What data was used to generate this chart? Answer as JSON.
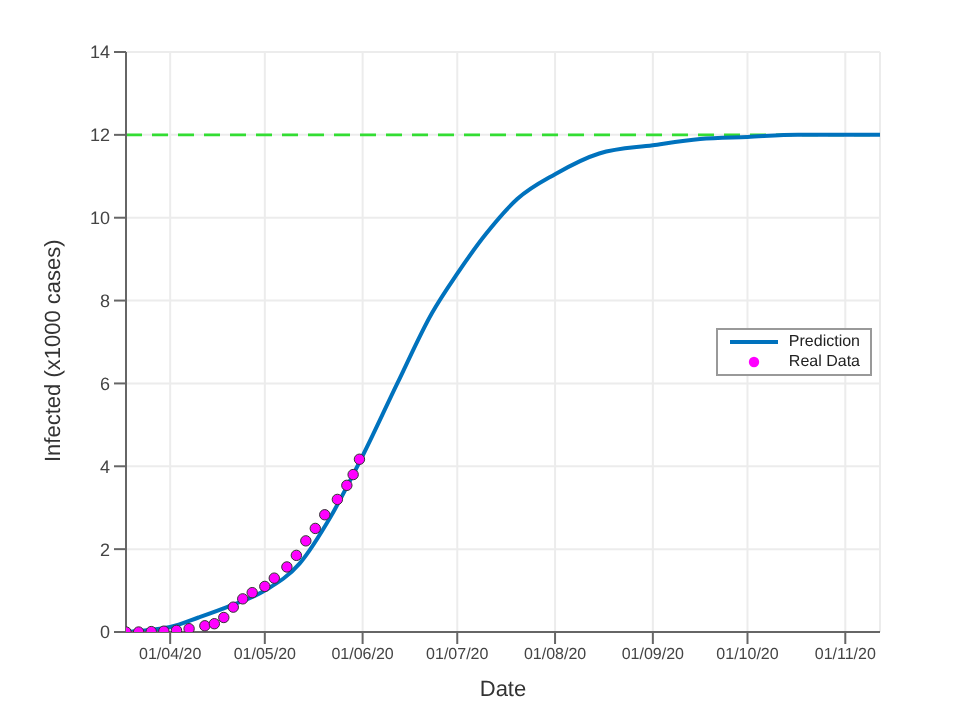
{
  "chart_data": {
    "type": "line",
    "xlabel": "Date",
    "ylabel": "Infected (x1000 cases)",
    "xlim": [
      "2020-03-18",
      "2020-11-12"
    ],
    "xticks": [
      {
        "value": "2020-04-01",
        "label": "01/04/20"
      },
      {
        "value": "2020-05-01",
        "label": "01/05/20"
      },
      {
        "value": "2020-06-01",
        "label": "01/06/20"
      },
      {
        "value": "2020-07-01",
        "label": "01/07/20"
      },
      {
        "value": "2020-08-01",
        "label": "01/08/20"
      },
      {
        "value": "2020-09-01",
        "label": "01/09/20"
      },
      {
        "value": "2020-10-01",
        "label": "01/10/20"
      },
      {
        "value": "2020-11-01",
        "label": "01/11/20"
      }
    ],
    "ylim": [
      0,
      14
    ],
    "yticks": [
      0,
      2,
      4,
      6,
      8,
      10,
      12,
      14
    ],
    "grid": true,
    "legend": "right",
    "series": [
      {
        "name": "Prediction",
        "color": "#0072bd",
        "marker": "none",
        "line_style": "solid",
        "x": [
          "2020-03-18",
          "2020-04-01",
          "2020-04-10",
          "2020-04-20",
          "2020-05-01",
          "2020-05-12",
          "2020-05-22",
          "2020-06-01",
          "2020-06-12",
          "2020-06-23",
          "2020-07-01",
          "2020-07-10",
          "2020-07-20",
          "2020-08-01",
          "2020-08-15",
          "2020-09-01",
          "2020-09-16",
          "2020-10-01",
          "2020-10-17",
          "2020-11-12"
        ],
        "values": [
          0,
          0.12,
          0.35,
          0.63,
          1.0,
          1.65,
          2.8,
          4.25,
          6.0,
          7.7,
          8.65,
          9.6,
          10.45,
          11.05,
          11.55,
          11.75,
          11.9,
          11.95,
          12.0,
          12.0
        ]
      },
      {
        "name": "Real Data",
        "type": "scatter",
        "color": "#ff00ff",
        "marker": "circle",
        "x": [
          "2020-03-18",
          "2020-03-22",
          "2020-03-26",
          "2020-03-30",
          "2020-04-03",
          "2020-04-07",
          "2020-04-12",
          "2020-04-15",
          "2020-04-18",
          "2020-04-21",
          "2020-04-24",
          "2020-04-27",
          "2020-05-01",
          "2020-05-04",
          "2020-05-08",
          "2020-05-11",
          "2020-05-14",
          "2020-05-17",
          "2020-05-20",
          "2020-05-24",
          "2020-05-27",
          "2020-05-29",
          "2020-05-31"
        ],
        "values": [
          0,
          0,
          0.01,
          0.02,
          0.04,
          0.08,
          0.15,
          0.2,
          0.35,
          0.6,
          0.8,
          0.95,
          1.1,
          1.3,
          1.57,
          1.85,
          2.2,
          2.5,
          2.83,
          3.2,
          3.54,
          3.8,
          4.17
        ]
      }
    ],
    "ref_lines": [
      {
        "axis": "y",
        "value": 12,
        "color": "#33dd33",
        "line_style": "dashed"
      }
    ]
  }
}
